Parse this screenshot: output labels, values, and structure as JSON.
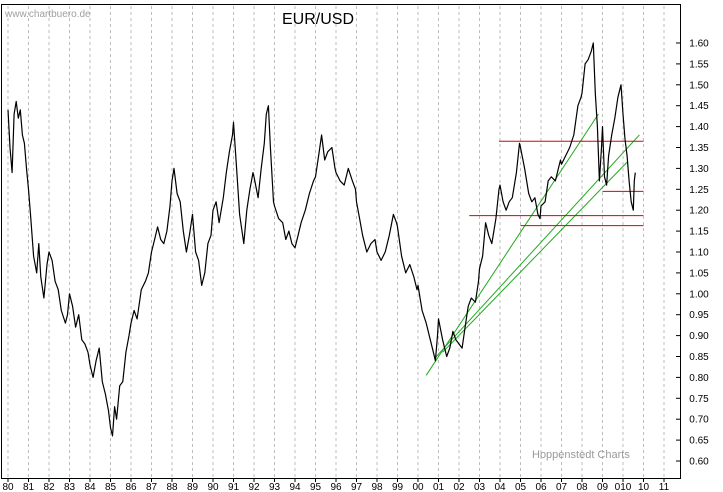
{
  "watermark": "www.chartbuero.de",
  "credit": "Hoppenstedt Charts",
  "chart_data": {
    "type": "line",
    "title": "EUR/USD",
    "xlabel": "",
    "ylabel": "",
    "x_ticks": [
      "80",
      "81",
      "82",
      "83",
      "84",
      "85",
      "86",
      "87",
      "88",
      "89",
      "90",
      "91",
      "92",
      "93",
      "94",
      "95",
      "96",
      "97",
      "98",
      "99",
      "00",
      "01",
      "02",
      "03",
      "04",
      "05",
      "06",
      "07",
      "08",
      "09",
      "010",
      "10",
      "11"
    ],
    "y_ticks": [
      "1.60",
      "1.55",
      "1.50",
      "1.45",
      "1.40",
      "1.35",
      "1.30",
      "1.25",
      "1.20",
      "1.15",
      "1.10",
      "1.05",
      "1.00",
      "0.95",
      "0.90",
      "0.85",
      "0.80",
      "0.75",
      "0.70",
      "0.65",
      "0.60"
    ],
    "xlim": [
      1980.0,
      2011.0
    ],
    "ylim": [
      0.575,
      1.625
    ],
    "grid": "vertical dashed",
    "series_color": "#000000",
    "series": [
      {
        "values": [
          [
            1980.0,
            1.44
          ],
          [
            1980.1,
            1.35
          ],
          [
            1980.2,
            1.29
          ],
          [
            1980.3,
            1.43
          ],
          [
            1980.4,
            1.46
          ],
          [
            1980.5,
            1.42
          ],
          [
            1980.6,
            1.44
          ],
          [
            1980.7,
            1.38
          ],
          [
            1980.8,
            1.36
          ],
          [
            1980.9,
            1.3
          ],
          [
            1981.0,
            1.25
          ],
          [
            1981.1,
            1.19
          ],
          [
            1981.25,
            1.09
          ],
          [
            1981.4,
            1.05
          ],
          [
            1981.5,
            1.12
          ],
          [
            1981.6,
            1.04
          ],
          [
            1981.75,
            0.99
          ],
          [
            1981.9,
            1.07
          ],
          [
            1982.0,
            1.1
          ],
          [
            1982.15,
            1.08
          ],
          [
            1982.3,
            1.03
          ],
          [
            1982.45,
            1.01
          ],
          [
            1982.6,
            0.96
          ],
          [
            1982.8,
            0.93
          ],
          [
            1982.9,
            0.95
          ],
          [
            1983.0,
            1.0
          ],
          [
            1983.15,
            0.97
          ],
          [
            1983.3,
            0.92
          ],
          [
            1983.45,
            0.95
          ],
          [
            1983.6,
            0.89
          ],
          [
            1983.75,
            0.88
          ],
          [
            1983.9,
            0.86
          ],
          [
            1984.0,
            0.83
          ],
          [
            1984.15,
            0.8
          ],
          [
            1984.3,
            0.84
          ],
          [
            1984.45,
            0.87
          ],
          [
            1984.6,
            0.79
          ],
          [
            1984.75,
            0.76
          ],
          [
            1984.9,
            0.72
          ],
          [
            1985.0,
            0.68
          ],
          [
            1985.1,
            0.66
          ],
          [
            1985.2,
            0.73
          ],
          [
            1985.3,
            0.7
          ],
          [
            1985.45,
            0.78
          ],
          [
            1985.6,
            0.79
          ],
          [
            1985.75,
            0.86
          ],
          [
            1985.9,
            0.9
          ],
          [
            1986.0,
            0.93
          ],
          [
            1986.15,
            0.96
          ],
          [
            1986.3,
            0.94
          ],
          [
            1986.5,
            1.01
          ],
          [
            1986.7,
            1.03
          ],
          [
            1986.85,
            1.05
          ],
          [
            1987.0,
            1.1
          ],
          [
            1987.15,
            1.13
          ],
          [
            1987.3,
            1.16
          ],
          [
            1987.45,
            1.13
          ],
          [
            1987.6,
            1.12
          ],
          [
            1987.75,
            1.15
          ],
          [
            1987.9,
            1.21
          ],
          [
            1988.0,
            1.27
          ],
          [
            1988.1,
            1.3
          ],
          [
            1988.25,
            1.24
          ],
          [
            1988.4,
            1.22
          ],
          [
            1988.55,
            1.15
          ],
          [
            1988.7,
            1.1
          ],
          [
            1988.85,
            1.14
          ],
          [
            1989.0,
            1.19
          ],
          [
            1989.15,
            1.1
          ],
          [
            1989.3,
            1.08
          ],
          [
            1989.45,
            1.02
          ],
          [
            1989.6,
            1.05
          ],
          [
            1989.75,
            1.12
          ],
          [
            1989.9,
            1.14
          ],
          [
            1990.0,
            1.2
          ],
          [
            1990.15,
            1.22
          ],
          [
            1990.3,
            1.17
          ],
          [
            1990.5,
            1.23
          ],
          [
            1990.65,
            1.29
          ],
          [
            1990.8,
            1.34
          ],
          [
            1990.95,
            1.38
          ],
          [
            1991.0,
            1.41
          ],
          [
            1991.15,
            1.3
          ],
          [
            1991.3,
            1.19
          ],
          [
            1991.5,
            1.12
          ],
          [
            1991.65,
            1.2
          ],
          [
            1991.8,
            1.25
          ],
          [
            1991.95,
            1.29
          ],
          [
            1992.0,
            1.28
          ],
          [
            1992.2,
            1.23
          ],
          [
            1992.35,
            1.3
          ],
          [
            1992.5,
            1.36
          ],
          [
            1992.6,
            1.43
          ],
          [
            1992.7,
            1.45
          ],
          [
            1992.8,
            1.35
          ],
          [
            1992.95,
            1.22
          ],
          [
            1993.0,
            1.21
          ],
          [
            1993.2,
            1.18
          ],
          [
            1993.4,
            1.17
          ],
          [
            1993.55,
            1.13
          ],
          [
            1993.7,
            1.15
          ],
          [
            1993.85,
            1.12
          ],
          [
            1994.0,
            1.11
          ],
          [
            1994.15,
            1.14
          ],
          [
            1994.3,
            1.17
          ],
          [
            1994.5,
            1.2
          ],
          [
            1994.7,
            1.24
          ],
          [
            1994.9,
            1.27
          ],
          [
            1995.0,
            1.28
          ],
          [
            1995.15,
            1.33
          ],
          [
            1995.3,
            1.38
          ],
          [
            1995.45,
            1.32
          ],
          [
            1995.6,
            1.34
          ],
          [
            1995.8,
            1.35
          ],
          [
            1995.95,
            1.3
          ],
          [
            1996.0,
            1.29
          ],
          [
            1996.2,
            1.27
          ],
          [
            1996.4,
            1.26
          ],
          [
            1996.6,
            1.3
          ],
          [
            1996.8,
            1.27
          ],
          [
            1996.95,
            1.25
          ],
          [
            1997.0,
            1.22
          ],
          [
            1997.15,
            1.18
          ],
          [
            1997.3,
            1.14
          ],
          [
            1997.5,
            1.1
          ],
          [
            1997.7,
            1.12
          ],
          [
            1997.9,
            1.13
          ],
          [
            1998.0,
            1.1
          ],
          [
            1998.2,
            1.08
          ],
          [
            1998.4,
            1.1
          ],
          [
            1998.6,
            1.14
          ],
          [
            1998.8,
            1.19
          ],
          [
            1998.95,
            1.17
          ],
          [
            1999.0,
            1.16
          ],
          [
            1999.2,
            1.09
          ],
          [
            1999.4,
            1.05
          ],
          [
            1999.6,
            1.07
          ],
          [
            1999.8,
            1.04
          ],
          [
            1999.95,
            1.01
          ],
          [
            2000.0,
            1.02
          ],
          [
            2000.2,
            0.96
          ],
          [
            2000.4,
            0.93
          ],
          [
            2000.6,
            0.89
          ],
          [
            2000.75,
            0.86
          ],
          [
            2000.85,
            0.84
          ],
          [
            2000.95,
            0.9
          ],
          [
            2001.0,
            0.94
          ],
          [
            2001.2,
            0.89
          ],
          [
            2001.4,
            0.85
          ],
          [
            2001.55,
            0.87
          ],
          [
            2001.7,
            0.91
          ],
          [
            2001.85,
            0.89
          ],
          [
            2002.0,
            0.88
          ],
          [
            2002.15,
            0.87
          ],
          [
            2002.3,
            0.92
          ],
          [
            2002.45,
            0.97
          ],
          [
            2002.6,
            0.99
          ],
          [
            2002.8,
            0.98
          ],
          [
            2002.95,
            1.03
          ],
          [
            2003.0,
            1.06
          ],
          [
            2003.15,
            1.09
          ],
          [
            2003.3,
            1.17
          ],
          [
            2003.45,
            1.14
          ],
          [
            2003.6,
            1.12
          ],
          [
            2003.8,
            1.18
          ],
          [
            2003.95,
            1.25
          ],
          [
            2004.0,
            1.26
          ],
          [
            2004.15,
            1.22
          ],
          [
            2004.3,
            1.2
          ],
          [
            2004.45,
            1.22
          ],
          [
            2004.6,
            1.23
          ],
          [
            2004.8,
            1.29
          ],
          [
            2004.95,
            1.36
          ],
          [
            2005.0,
            1.35
          ],
          [
            2005.2,
            1.3
          ],
          [
            2005.4,
            1.24
          ],
          [
            2005.55,
            1.22
          ],
          [
            2005.7,
            1.23
          ],
          [
            2005.85,
            1.19
          ],
          [
            2005.95,
            1.18
          ],
          [
            2006.0,
            1.21
          ],
          [
            2006.2,
            1.22
          ],
          [
            2006.35,
            1.27
          ],
          [
            2006.5,
            1.28
          ],
          [
            2006.7,
            1.27
          ],
          [
            2006.85,
            1.3
          ],
          [
            2006.95,
            1.32
          ],
          [
            2007.0,
            1.31
          ],
          [
            2007.2,
            1.33
          ],
          [
            2007.4,
            1.35
          ],
          [
            2007.6,
            1.38
          ],
          [
            2007.8,
            1.45
          ],
          [
            2007.95,
            1.47
          ],
          [
            2008.0,
            1.48
          ],
          [
            2008.15,
            1.55
          ],
          [
            2008.3,
            1.56
          ],
          [
            2008.45,
            1.58
          ],
          [
            2008.55,
            1.6
          ],
          [
            2008.65,
            1.48
          ],
          [
            2008.75,
            1.4
          ],
          [
            2008.85,
            1.27
          ],
          [
            2008.95,
            1.35
          ],
          [
            2009.0,
            1.4
          ],
          [
            2009.1,
            1.28
          ],
          [
            2009.2,
            1.26
          ],
          [
            2009.3,
            1.33
          ],
          [
            2009.45,
            1.38
          ],
          [
            2009.6,
            1.42
          ],
          [
            2009.75,
            1.47
          ],
          [
            2009.9,
            1.5
          ],
          [
            2010.0,
            1.43
          ],
          [
            2010.1,
            1.37
          ],
          [
            2010.2,
            1.33
          ],
          [
            2010.3,
            1.27
          ],
          [
            2010.4,
            1.22
          ],
          [
            2010.5,
            1.2
          ],
          [
            2010.55,
            1.27
          ],
          [
            2010.6,
            1.29
          ]
        ]
      }
    ],
    "trendlines": [
      {
        "color": "#22aa22",
        "x": [
          2000.4,
          2008.8
        ],
        "y": [
          0.805,
          1.43
        ]
      },
      {
        "color": "#22aa22",
        "x": [
          2000.8,
          2010.8
        ],
        "y": [
          0.845,
          1.38
        ]
      },
      {
        "color": "#22aa22",
        "x": [
          2001.2,
          2010.2
        ],
        "y": [
          0.86,
          1.315
        ]
      }
    ],
    "horizontal_lines": [
      {
        "color": "#dd0000",
        "x": [
          2003.95,
          2011.0
        ],
        "y": 1.365
      },
      {
        "color": "#dd0000",
        "x": [
          2009.0,
          2011.0
        ],
        "y": 1.245
      },
      {
        "color": "#dd0000",
        "x": [
          2002.5,
          2011.0
        ],
        "y": 1.187
      },
      {
        "color": "#dd0000",
        "x": [
          2005.0,
          2011.0
        ],
        "y": 1.163
      }
    ]
  }
}
